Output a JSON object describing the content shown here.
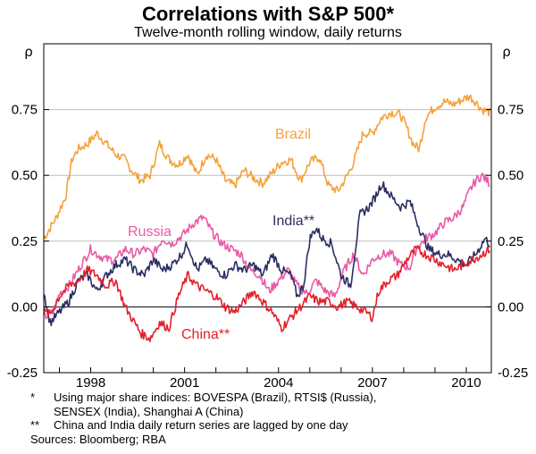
{
  "chart_data": {
    "type": "line",
    "title": "Correlations with S&P 500*",
    "subtitle": "Twelve-month rolling window, daily returns",
    "left_unit": "ρ",
    "right_unit": "ρ",
    "ylim": [
      -0.25,
      1.0
    ],
    "y_ticks": [
      "-0.25",
      "0.00",
      "0.25",
      "0.50",
      "0.75"
    ],
    "y_tick_values": [
      -0.25,
      0.0,
      0.25,
      0.5,
      0.75
    ],
    "xlim": [
      1996.5,
      2010.8
    ],
    "x_ticks": [
      "1998",
      "2001",
      "2004",
      "2007",
      "2010"
    ],
    "x_tick_values": [
      1998,
      2001,
      2004,
      2007,
      2010
    ],
    "reference_line": 0.0,
    "series": [
      {
        "name": "Brazil",
        "label": "Brazil",
        "color": "#f4a23b",
        "x": [
          1996.5,
          1996.9,
          1997.2,
          1997.4,
          1997.6,
          1997.9,
          1998.2,
          1998.5,
          1998.8,
          1999.1,
          1999.3,
          1999.6,
          1999.9,
          2000.2,
          2000.5,
          2000.8,
          2001.1,
          2001.4,
          2001.7,
          2002.0,
          2002.3,
          2002.6,
          2002.9,
          2003.2,
          2003.5,
          2003.8,
          2004.1,
          2004.4,
          2004.7,
          2005.0,
          2005.3,
          2005.6,
          2005.9,
          2006.2,
          2006.4,
          2006.7,
          2007.0,
          2007.3,
          2007.6,
          2007.9,
          2008.1,
          2008.3,
          2008.5,
          2008.7,
          2009.0,
          2009.3,
          2009.6,
          2009.9,
          2010.1,
          2010.3,
          2010.5,
          2010.75
        ],
        "y": [
          0.26,
          0.34,
          0.42,
          0.56,
          0.6,
          0.62,
          0.66,
          0.62,
          0.58,
          0.56,
          0.52,
          0.48,
          0.5,
          0.62,
          0.56,
          0.54,
          0.58,
          0.5,
          0.58,
          0.56,
          0.48,
          0.46,
          0.52,
          0.49,
          0.47,
          0.51,
          0.55,
          0.56,
          0.48,
          0.55,
          0.57,
          0.46,
          0.44,
          0.5,
          0.55,
          0.66,
          0.66,
          0.72,
          0.74,
          0.73,
          0.68,
          0.62,
          0.6,
          0.72,
          0.76,
          0.78,
          0.77,
          0.79,
          0.8,
          0.78,
          0.75,
          0.74
        ]
      },
      {
        "name": "Russia",
        "label": "Russia",
        "color": "#e85aa6",
        "x": [
          1996.5,
          1996.8,
          1997.0,
          1997.3,
          1997.6,
          1998.0,
          1998.2,
          1998.5,
          1998.8,
          1999.1,
          1999.4,
          1999.7,
          2000.0,
          2000.3,
          2000.6,
          2001.0,
          2001.3,
          2001.6,
          2001.9,
          2002.2,
          2002.5,
          2002.8,
          2003.1,
          2003.4,
          2003.7,
          2004.0,
          2004.3,
          2004.6,
          2004.9,
          2005.2,
          2005.5,
          2005.8,
          2006.1,
          2006.4,
          2006.7,
          2007.0,
          2007.3,
          2007.6,
          2007.9,
          2008.2,
          2008.4,
          2008.7,
          2009.0,
          2009.3,
          2009.6,
          2009.9,
          2010.1,
          2010.3,
          2010.5,
          2010.75
        ],
        "y": [
          -0.04,
          -0.02,
          0.05,
          0.08,
          0.14,
          0.22,
          0.2,
          0.18,
          0.18,
          0.22,
          0.2,
          0.22,
          0.2,
          0.26,
          0.24,
          0.28,
          0.32,
          0.34,
          0.28,
          0.24,
          0.22,
          0.2,
          0.14,
          0.12,
          0.06,
          0.1,
          0.14,
          0.08,
          0.05,
          0.1,
          0.06,
          0.04,
          0.14,
          0.2,
          0.12,
          0.18,
          0.2,
          0.2,
          0.16,
          0.15,
          0.22,
          0.26,
          0.28,
          0.32,
          0.34,
          0.38,
          0.44,
          0.48,
          0.5,
          0.47
        ]
      },
      {
        "name": "India**",
        "label": "India**",
        "color": "#2b2e64",
        "x": [
          1996.5,
          1996.7,
          1997.0,
          1997.3,
          1997.6,
          1997.9,
          1998.2,
          1998.5,
          1998.8,
          1999.1,
          1999.4,
          1999.7,
          2000.0,
          2000.3,
          2000.6,
          2000.9,
          2001.1,
          2001.4,
          2001.7,
          2002.0,
          2002.3,
          2002.6,
          2002.9,
          2003.2,
          2003.5,
          2003.8,
          2004.1,
          2004.4,
          2004.6,
          2004.8,
          2005.0,
          2005.2,
          2005.4,
          2005.7,
          2006.0,
          2006.3,
          2006.6,
          2006.9,
          2007.1,
          2007.3,
          2007.6,
          2007.9,
          2008.2,
          2008.5,
          2008.8,
          2009.1,
          2009.4,
          2009.7,
          2010.0,
          2010.3,
          2010.6,
          2010.75
        ],
        "y": [
          0.06,
          -0.06,
          -0.02,
          0.02,
          0.1,
          0.12,
          0.06,
          0.12,
          0.16,
          0.18,
          0.14,
          0.12,
          0.18,
          0.14,
          0.16,
          0.2,
          0.24,
          0.14,
          0.18,
          0.14,
          0.12,
          0.16,
          0.14,
          0.16,
          0.12,
          0.2,
          0.14,
          0.12,
          0.04,
          0.08,
          0.26,
          0.3,
          0.26,
          0.24,
          0.12,
          0.08,
          0.35,
          0.38,
          0.42,
          0.47,
          0.42,
          0.38,
          0.4,
          0.3,
          0.22,
          0.2,
          0.2,
          0.18,
          0.16,
          0.2,
          0.26,
          0.24
        ]
      },
      {
        "name": "China**",
        "label": "China**",
        "color": "#e3202b",
        "x": [
          1996.5,
          1996.7,
          1997.0,
          1997.3,
          1997.6,
          1997.9,
          1998.2,
          1998.5,
          1998.8,
          1999.1,
          1999.4,
          1999.6,
          1999.9,
          2000.2,
          2000.5,
          2000.8,
          2001.1,
          2001.4,
          2001.7,
          2002.0,
          2002.3,
          2002.6,
          2002.9,
          2003.2,
          2003.5,
          2003.8,
          2004.1,
          2004.4,
          2004.7,
          2005.0,
          2005.3,
          2005.6,
          2005.9,
          2006.2,
          2006.5,
          2006.8,
          2007.0,
          2007.2,
          2007.5,
          2007.8,
          2008.1,
          2008.4,
          2008.7,
          2009.0,
          2009.3,
          2009.6,
          2009.9,
          2010.2,
          2010.5,
          2010.75
        ],
        "y": [
          -0.02,
          -0.03,
          0.04,
          0.08,
          0.1,
          0.14,
          0.12,
          0.08,
          0.1,
          0.0,
          -0.06,
          -0.1,
          -0.12,
          -0.06,
          -0.08,
          0.04,
          0.12,
          0.08,
          0.06,
          0.04,
          0.0,
          -0.02,
          0.02,
          0.06,
          0.02,
          -0.02,
          -0.08,
          -0.04,
          0.0,
          0.04,
          0.02,
          0.02,
          0.0,
          0.02,
          0.0,
          -0.02,
          -0.04,
          0.06,
          0.1,
          0.12,
          0.18,
          0.22,
          0.2,
          0.18,
          0.16,
          0.14,
          0.16,
          0.18,
          0.2,
          0.22
        ]
      }
    ]
  },
  "notes": [
    {
      "mark": "*",
      "text": "Using major share indices: BOVESPA (Brazil), RTSI$ (Russia),\nSENSEX (India), Shanghai A (China)"
    },
    {
      "mark": "**",
      "text": "China and India daily return series are lagged by one day"
    }
  ],
  "sources": "Sources: Bloomberg; RBA"
}
